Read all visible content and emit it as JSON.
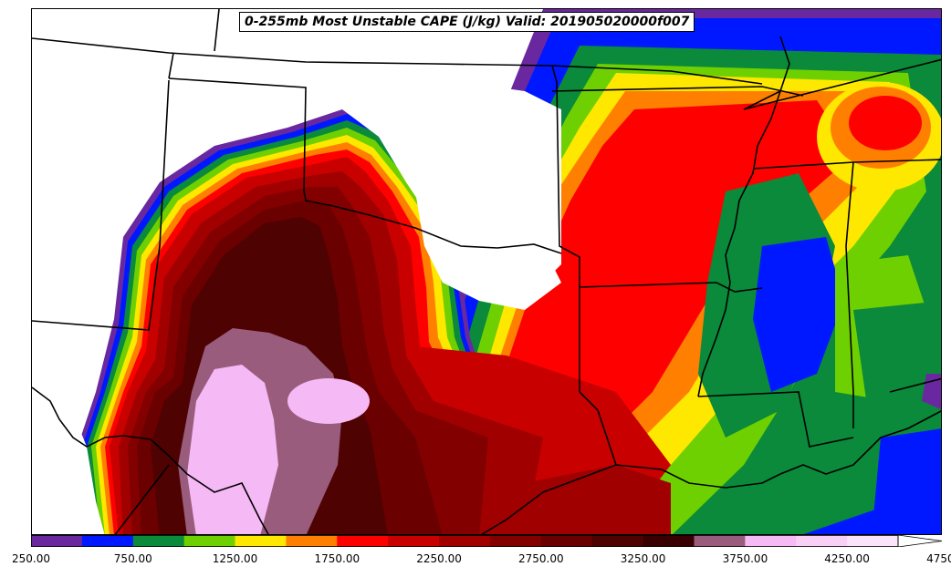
{
  "title": "0-255mb Most Unstable CAPE (J/kg) Valid: 201905020000f007",
  "colorbar": {
    "levels": [
      250,
      500,
      750,
      1000,
      1250,
      1500,
      1750,
      2000,
      2250,
      2500,
      2750,
      3000,
      3250,
      3500,
      3750,
      4000,
      4250,
      4500,
      4750
    ],
    "colors": [
      "#6a28a0",
      "#0018ff",
      "#0a8a3a",
      "#6ed000",
      "#ffe800",
      "#ff8000",
      "#ff0000",
      "#c80000",
      "#a00000",
      "#820000",
      "#6a0000",
      "#4e0202",
      "#380000",
      "#9a5c7c",
      "#f5b9f5",
      "#f7cff7",
      "#fbe3fb",
      "#ffffff"
    ],
    "tick_labels": [
      "250.00",
      "750.00",
      "1250.00",
      "1750.00",
      "2250.00",
      "2750.00",
      "3250.00",
      "3750.00",
      "4250.00",
      "4750.00"
    ],
    "extend": "max"
  }
}
